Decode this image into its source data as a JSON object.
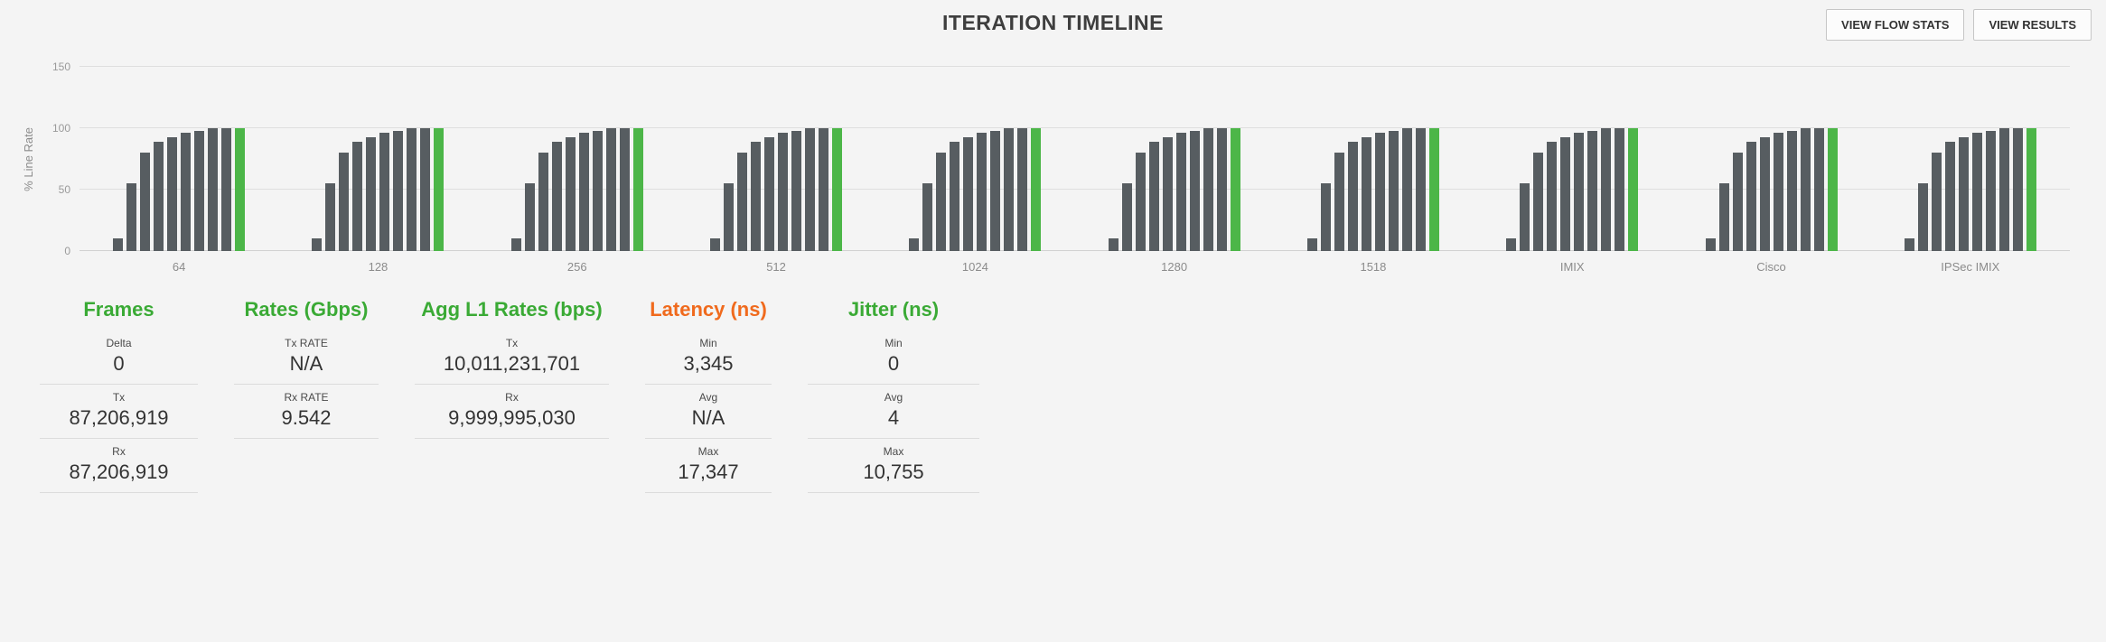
{
  "header": {
    "title": "ITERATION TIMELINE",
    "view_flow_stats_label": "VIEW FLOW STATS",
    "view_results_label": "VIEW RESULTS"
  },
  "chart_data": {
    "type": "bar",
    "title": "ITERATION TIMELINE",
    "ylabel": "% Line Rate",
    "ylim": [
      0,
      150
    ],
    "yticks": [
      0,
      50,
      100,
      150
    ],
    "grid": true,
    "legend": false,
    "categories": [
      "64",
      "128",
      "256",
      "512",
      "1024",
      "1280",
      "1518",
      "IMIX",
      "Cisco",
      "IPSec IMIX"
    ],
    "bars_per_group": [
      10,
      55,
      80,
      89,
      93,
      96,
      98,
      100,
      100,
      100
    ],
    "final_bar_index": 9,
    "colors": {
      "bar": "#575d61",
      "final_bar": "#4cb648"
    }
  },
  "colors": {
    "accent_green": "#3aaa35",
    "accent_orange": "#f06a1d",
    "background": "#f4f4f4"
  },
  "stats_panels": [
    {
      "title": "Frames",
      "title_color": "#3aaa35",
      "rows": [
        {
          "label": "Delta",
          "value": "0"
        },
        {
          "label": "Tx",
          "value": "87,206,919"
        },
        {
          "label": "Rx",
          "value": "87,206,919"
        }
      ]
    },
    {
      "title": "Rates (Gbps)",
      "title_color": "#3aaa35",
      "rows": [
        {
          "label": "Tx RATE",
          "value": "N/A"
        },
        {
          "label": "Rx RATE",
          "value": "9.542"
        }
      ]
    },
    {
      "title": "Agg L1 Rates (bps)",
      "title_color": "#3aaa35",
      "rows": [
        {
          "label": "Tx",
          "value": "10,011,231,701"
        },
        {
          "label": "Rx",
          "value": "9,999,995,030"
        }
      ]
    },
    {
      "title": "Latency (ns)",
      "title_color": "#f06a1d",
      "rows": [
        {
          "label": "Min",
          "value": "3,345"
        },
        {
          "label": "Avg",
          "value": "N/A"
        },
        {
          "label": "Max",
          "value": "17,347"
        }
      ]
    },
    {
      "title": "Jitter (ns)",
      "title_color": "#3aaa35",
      "rows": [
        {
          "label": "Min",
          "value": "0"
        },
        {
          "label": "Avg",
          "value": "4"
        },
        {
          "label": "Max",
          "value": "10,755"
        }
      ]
    }
  ]
}
